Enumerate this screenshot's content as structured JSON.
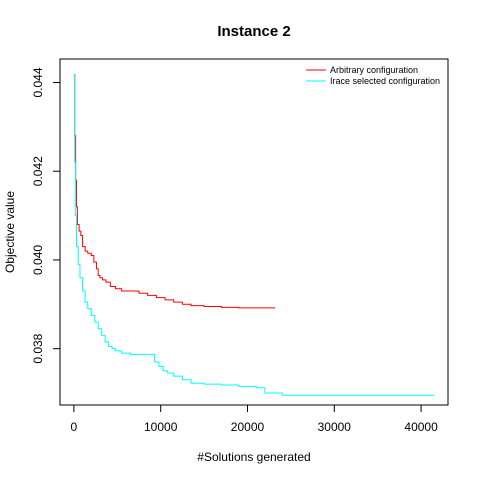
{
  "chart_data": {
    "type": "line",
    "title": "Instance 2",
    "xlabel": "#Solutions generated",
    "ylabel": "Objective value",
    "xlim": [
      -1600,
      43100
    ],
    "ylim": [
      0.03673,
      0.04453
    ],
    "x_ticks": [
      0,
      10000,
      20000,
      30000,
      40000
    ],
    "x_tick_labels": [
      "0",
      "10000",
      "20000",
      "30000",
      "40000"
    ],
    "y_ticks": [
      0.038,
      0.04,
      0.042,
      0.044
    ],
    "y_tick_labels": [
      "0.038",
      "0.040",
      "0.042",
      "0.044"
    ],
    "grid": false,
    "legend_position": "top-right",
    "series": [
      {
        "name": "Arbitrary configuration",
        "color": "#ff0000",
        "x": [
          0,
          100,
          200,
          300,
          400,
          600,
          800,
          1000,
          1300,
          1600,
          2000,
          2300,
          2600,
          2800,
          3000,
          3300,
          3700,
          4200,
          4800,
          5500,
          6500,
          7500,
          8500,
          9500,
          10500,
          11500,
          12500,
          13500,
          15000,
          17000,
          19000,
          21000,
          23200
        ],
        "y": [
          0.04418,
          0.0428,
          0.0418,
          0.0412,
          0.0408,
          0.04065,
          0.04055,
          0.0403,
          0.0402,
          0.04015,
          0.0401,
          0.03995,
          0.0398,
          0.03965,
          0.0396,
          0.03955,
          0.0395,
          0.0394,
          0.03935,
          0.0393,
          0.0393,
          0.03925,
          0.0392,
          0.03915,
          0.0391,
          0.03905,
          0.039,
          0.03897,
          0.03895,
          0.03893,
          0.03892,
          0.03892,
          0.03892
        ]
      },
      {
        "name": "Irace selected configuration",
        "color": "#00ffff",
        "x": [
          0,
          100,
          200,
          300,
          500,
          700,
          1000,
          1300,
          1600,
          2000,
          2400,
          2800,
          3200,
          3600,
          4000,
          4400,
          4800,
          5500,
          6500,
          7500,
          8700,
          9300,
          9800,
          10300,
          10800,
          11500,
          12500,
          13500,
          15000,
          17000,
          19000,
          21000,
          22000,
          24000,
          27000,
          30000,
          35000,
          41500
        ],
        "y": [
          0.04418,
          0.0422,
          0.041,
          0.0403,
          0.0399,
          0.0396,
          0.0393,
          0.03905,
          0.0389,
          0.03875,
          0.0386,
          0.03845,
          0.0383,
          0.03815,
          0.03805,
          0.038,
          0.03795,
          0.0379,
          0.03787,
          0.03787,
          0.03787,
          0.0377,
          0.0376,
          0.0375,
          0.03745,
          0.03738,
          0.0373,
          0.03722,
          0.0372,
          0.03718,
          0.03715,
          0.03712,
          0.037,
          0.03695,
          0.03695,
          0.03695,
          0.03695,
          0.03695
        ]
      }
    ]
  }
}
